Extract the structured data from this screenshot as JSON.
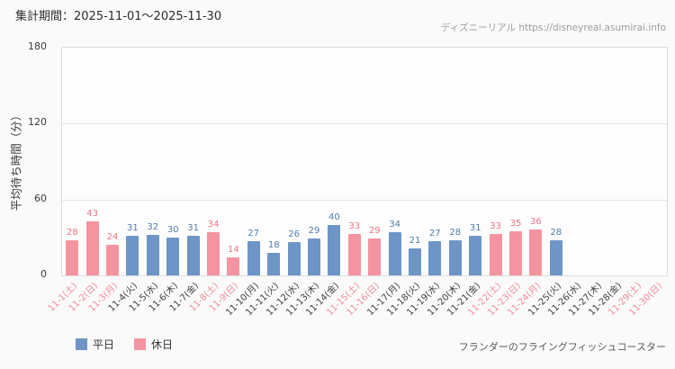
{
  "header": {
    "period_label": "集計期間：2025-11-01～2025-11-30",
    "credit": "ディズニーリアル https://disneyreal.asumirai.info"
  },
  "footer": {
    "attraction_name": "フランダーのフライングフィッシュコースター"
  },
  "colors": {
    "weekday_bar": "#6d95c6",
    "holiday_bar": "#f394a0",
    "weekday_value_text": "#4d7dae",
    "holiday_value_text": "#ec7586",
    "weekday_axis_text": "#3d3d3d",
    "holiday_axis_text": "#f08b97",
    "gridline": "#e5e5e5"
  },
  "chart_data": {
    "type": "bar",
    "title": "",
    "ylabel": "平均待ち時間（分）",
    "xlabel": "",
    "ylim": [
      0,
      180
    ],
    "yticks": [
      0,
      60,
      120,
      180
    ],
    "grid": true,
    "x_tick_rotation": -45,
    "legend_position": "bottom-left",
    "series_labels": {
      "weekday": "平日",
      "holiday": "休日"
    },
    "categories": [
      "11-1(土)",
      "11-2(日)",
      "11-3(月)",
      "11-4(火)",
      "11-5(水)",
      "11-6(木)",
      "11-7(金)",
      "11-8(土)",
      "11-9(日)",
      "11-10(月)",
      "11-11(火)",
      "11-12(水)",
      "11-13(木)",
      "11-14(金)",
      "11-15(土)",
      "11-16(日)",
      "11-17(月)",
      "11-18(火)",
      "11-19(水)",
      "11-20(木)",
      "11-21(金)",
      "11-22(土)",
      "11-23(日)",
      "11-24(月)",
      "11-25(火)",
      "11-26(水)",
      "11-27(木)",
      "11-28(金)",
      "11-29(土)",
      "11-30(日)"
    ],
    "values": [
      28,
      43,
      24,
      31,
      32,
      30,
      31,
      34,
      14,
      27,
      18,
      26,
      29,
      40,
      33,
      29,
      34,
      21,
      27,
      28,
      31,
      33,
      35,
      36,
      28,
      null,
      null,
      null,
      null,
      null
    ],
    "day_types": [
      "holiday",
      "holiday",
      "holiday",
      "weekday",
      "weekday",
      "weekday",
      "weekday",
      "holiday",
      "holiday",
      "weekday",
      "weekday",
      "weekday",
      "weekday",
      "weekday",
      "holiday",
      "holiday",
      "weekday",
      "weekday",
      "weekday",
      "weekday",
      "weekday",
      "holiday",
      "holiday",
      "holiday",
      "weekday",
      "weekday",
      "weekday",
      "weekday",
      "holiday",
      "holiday"
    ]
  }
}
